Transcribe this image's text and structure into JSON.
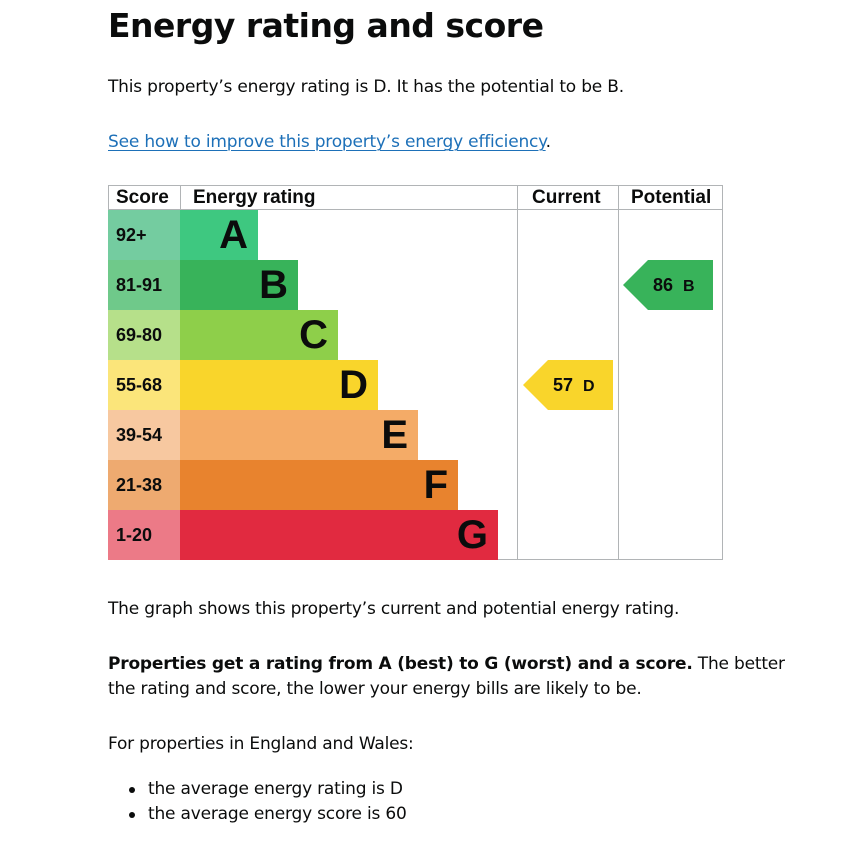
{
  "heading": "Energy rating and score",
  "rating_text": "This property’s energy rating is D. It has the potential to be B.",
  "link_text": "See how to improve this property’s energy efficiency",
  "link_suffix": ".",
  "chart_data": {
    "type": "table",
    "headers": {
      "score": "Score",
      "rating": "Energy rating",
      "current": "Current",
      "potential": "Potential"
    },
    "bands": [
      {
        "score": "92+",
        "letter": "A",
        "color": "#008054",
        "bg": "#3ec880",
        "score_bg": "#74cca0"
      },
      {
        "score": "81-91",
        "letter": "B",
        "color": "#19b459",
        "bg": "#38b35a",
        "score_bg": "#6fc98a"
      },
      {
        "score": "69-80",
        "letter": "C",
        "color": "#8dce46",
        "bg": "#8ecf4a",
        "score_bg": "#b6e08a"
      },
      {
        "score": "55-68",
        "letter": "D",
        "color": "#ffd500",
        "bg": "#f9d52b",
        "score_bg": "#fbe57a"
      },
      {
        "score": "39-54",
        "letter": "E",
        "color": "#fcaa65",
        "bg": "#f4ab67",
        "score_bg": "#f7c8a0"
      },
      {
        "score": "21-38",
        "letter": "F",
        "color": "#ef8023",
        "bg": "#e8832e",
        "score_bg": "#eeaa70"
      },
      {
        "score": "1-20",
        "letter": "G",
        "color": "#e9153b",
        "bg": "#e12a40",
        "score_bg": "#ec7a87"
      }
    ],
    "current": {
      "score": "57",
      "letter": "D",
      "color": "#f9d52b"
    },
    "potential": {
      "score": "86",
      "letter": "B",
      "color": "#38b35a"
    }
  },
  "graph_text": "The graph shows this property’s current and potential energy rating.",
  "props_bold": "Properties get a rating from A (best) to G (worst) and a score.",
  "props_rest": " The better",
  "props_line2": "the rating and score, the lower your energy bills are likely to be.",
  "for_text": "For properties in England and Wales:",
  "bullets": [
    "the average energy rating is D",
    "the average energy score is 60"
  ]
}
